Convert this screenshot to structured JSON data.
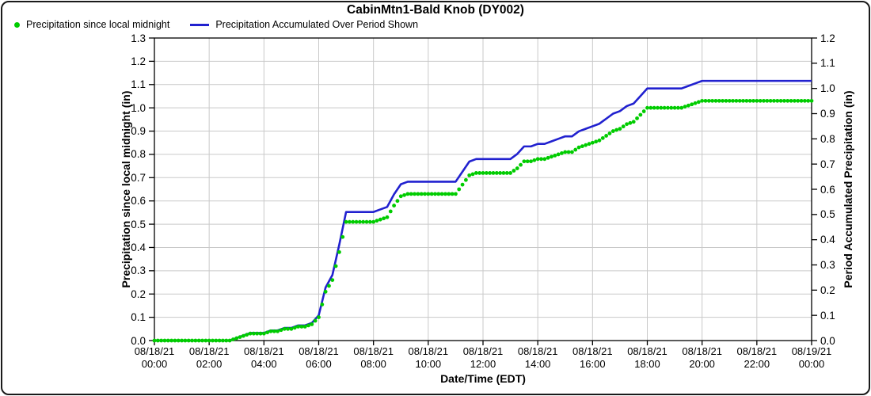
{
  "chart": {
    "title": "CabinMtn1-Bald Knob (DY002)",
    "legend": [
      {
        "label": "Precipitation since local midnight",
        "marker": "dot",
        "color": "#00cc00"
      },
      {
        "label": "Precipitation Accumulated Over Period Shown",
        "marker": "line",
        "color": "#2121cf"
      }
    ],
    "left_axis": {
      "label": "Precipitation since local midnight (in)",
      "ticks": [
        "0.0",
        "0.1",
        "0.2",
        "0.3",
        "0.4",
        "0.5",
        "0.6",
        "0.7",
        "0.8",
        "0.9",
        "1.0",
        "1.1",
        "1.2",
        "1.3"
      ],
      "min": 0.0,
      "max": 1.3
    },
    "right_axis": {
      "label": "Period Accumulated Precipitation (in)",
      "ticks": [
        "0.0",
        "0.1",
        "0.2",
        "0.3",
        "0.4",
        "0.5",
        "0.6",
        "0.7",
        "0.8",
        "0.9",
        "1.0",
        "1.1",
        "1.2"
      ],
      "min": 0.0,
      "max": 1.2
    },
    "x_axis": {
      "label": "Date/Time (EDT)",
      "ticks": [
        {
          "t": 0,
          "date": "08/18/21",
          "time": "00:00"
        },
        {
          "t": 2,
          "date": "08/18/21",
          "time": "02:00"
        },
        {
          "t": 4,
          "date": "08/18/21",
          "time": "04:00"
        },
        {
          "t": 6,
          "date": "08/18/21",
          "time": "06:00"
        },
        {
          "t": 8,
          "date": "08/18/21",
          "time": "08:00"
        },
        {
          "t": 10,
          "date": "08/18/21",
          "time": "10:00"
        },
        {
          "t": 12,
          "date": "08/18/21",
          "time": "12:00"
        },
        {
          "t": 14,
          "date": "08/18/21",
          "time": "14:00"
        },
        {
          "t": 16,
          "date": "08/18/21",
          "time": "16:00"
        },
        {
          "t": 18,
          "date": "08/18/21",
          "time": "18:00"
        },
        {
          "t": 20,
          "date": "08/18/21",
          "time": "20:00"
        },
        {
          "t": 22,
          "date": "08/18/21",
          "time": "22:00"
        },
        {
          "t": 24,
          "date": "08/19/21",
          "time": "00:00"
        }
      ]
    },
    "colors": {
      "grid": "#c9c9c9",
      "axis": "#000000",
      "green": "#00cc00",
      "blue": "#2121cf"
    }
  },
  "chart_data": {
    "type": "line",
    "title": "CabinMtn1-Bald Knob (DY002)",
    "xlabel": "Date/Time (EDT)",
    "x_unit": "hours since 08/18/21 00:00 EDT",
    "sample_interval_minutes": 15,
    "x": [
      0,
      0.25,
      0.5,
      0.75,
      1,
      1.25,
      1.5,
      1.75,
      2,
      2.25,
      2.5,
      2.75,
      3,
      3.25,
      3.5,
      3.75,
      4,
      4.25,
      4.5,
      4.75,
      5,
      5.25,
      5.5,
      5.75,
      6,
      6.25,
      6.5,
      6.75,
      7,
      7.25,
      7.5,
      7.75,
      8,
      8.25,
      8.5,
      8.75,
      9,
      9.25,
      9.5,
      9.75,
      10,
      10.25,
      10.5,
      10.75,
      11,
      11.25,
      11.5,
      11.75,
      12,
      12.25,
      12.5,
      12.75,
      13,
      13.25,
      13.5,
      13.75,
      14,
      14.25,
      14.5,
      14.75,
      15,
      15.25,
      15.5,
      15.75,
      16,
      16.25,
      16.5,
      16.75,
      17,
      17.25,
      17.5,
      17.75,
      18,
      18.25,
      18.5,
      18.75,
      19,
      19.25,
      19.5,
      19.75,
      20,
      20.25,
      20.5,
      20.75,
      21,
      21.25,
      21.5,
      21.75,
      22,
      22.25,
      22.5,
      22.75,
      23,
      23.25,
      23.5,
      23.75,
      24
    ],
    "series": [
      {
        "name": "Precipitation since local midnight",
        "style": "scatter",
        "color": "#00cc00",
        "axis": "left",
        "ylabel": "Precipitation since local midnight (in)",
        "ylim": [
          0.0,
          1.3
        ],
        "values": [
          0,
          0,
          0,
          0,
          0,
          0,
          0,
          0,
          0,
          0,
          0,
          0,
          0.01,
          0.02,
          0.03,
          0.03,
          0.03,
          0.04,
          0.04,
          0.05,
          0.05,
          0.06,
          0.06,
          0.07,
          0.1,
          0.21,
          0.26,
          0.38,
          0.51,
          0.51,
          0.51,
          0.51,
          0.51,
          0.52,
          0.53,
          0.58,
          0.62,
          0.63,
          0.63,
          0.63,
          0.63,
          0.63,
          0.63,
          0.63,
          0.63,
          0.67,
          0.71,
          0.72,
          0.72,
          0.72,
          0.72,
          0.72,
          0.72,
          0.74,
          0.77,
          0.77,
          0.78,
          0.78,
          0.79,
          0.8,
          0.81,
          0.81,
          0.83,
          0.84,
          0.85,
          0.86,
          0.88,
          0.9,
          0.91,
          0.93,
          0.94,
          0.97,
          1.0,
          1.0,
          1.0,
          1.0,
          1.0,
          1.0,
          1.01,
          1.02,
          1.03,
          1.03,
          1.03,
          1.03,
          1.03,
          1.03,
          1.03,
          1.03,
          1.03,
          1.03,
          1.03,
          1.03,
          1.03,
          1.03,
          1.03,
          1.03,
          1.03
        ]
      },
      {
        "name": "Precipitation Accumulated Over Period Shown",
        "style": "line",
        "color": "#2121cf",
        "axis": "right",
        "ylabel": "Period Accumulated Precipitation (in)",
        "ylim": [
          0.0,
          1.2
        ],
        "values": [
          0,
          0,
          0,
          0,
          0,
          0,
          0,
          0,
          0,
          0,
          0,
          0,
          0.01,
          0.02,
          0.03,
          0.03,
          0.03,
          0.04,
          0.04,
          0.05,
          0.05,
          0.06,
          0.06,
          0.07,
          0.1,
          0.21,
          0.26,
          0.38,
          0.51,
          0.51,
          0.51,
          0.51,
          0.51,
          0.52,
          0.53,
          0.58,
          0.62,
          0.63,
          0.63,
          0.63,
          0.63,
          0.63,
          0.63,
          0.63,
          0.63,
          0.67,
          0.71,
          0.72,
          0.72,
          0.72,
          0.72,
          0.72,
          0.72,
          0.74,
          0.77,
          0.77,
          0.78,
          0.78,
          0.79,
          0.8,
          0.81,
          0.81,
          0.83,
          0.84,
          0.85,
          0.86,
          0.88,
          0.9,
          0.91,
          0.93,
          0.94,
          0.97,
          1.0,
          1.0,
          1.0,
          1.0,
          1.0,
          1.0,
          1.01,
          1.02,
          1.03,
          1.03,
          1.03,
          1.03,
          1.03,
          1.03,
          1.03,
          1.03,
          1.03,
          1.03,
          1.03,
          1.03,
          1.03,
          1.03,
          1.03,
          1.03,
          1.03
        ]
      }
    ],
    "legend_position": "top-left",
    "grid": true
  }
}
